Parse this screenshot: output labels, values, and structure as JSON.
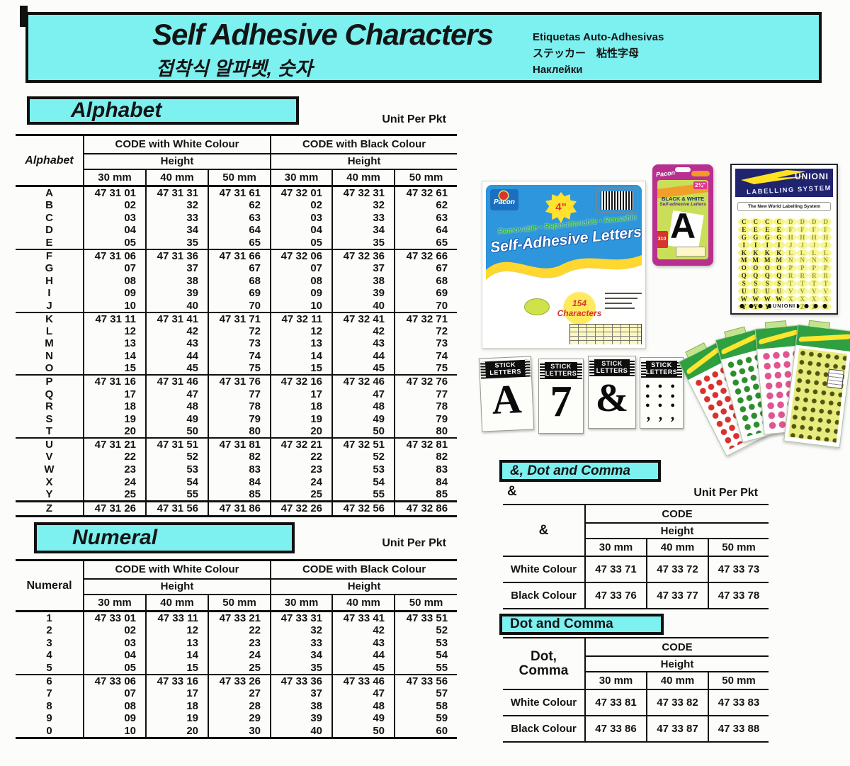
{
  "colors": {
    "cyan": "#7df0f0",
    "package_blue": "#2d96dc",
    "pack_magenta": "#b92f90",
    "union_navy": "#20246e",
    "fan_green": "#2ea042"
  },
  "header": {
    "title": "Self Adhesive Characters",
    "subtitle_korean": "접착식 알파벳, 숫자",
    "translations": [
      "Etiquetas Auto-Adhesivas",
      "ステッカー　粘性字母",
      "Наклейки"
    ]
  },
  "labels": {
    "unit_per_pkt": "Unit Per Pkt",
    "code": "CODE",
    "height": "Height",
    "code_white": "CODE with White Colour",
    "code_black": "CODE with Black Colour",
    "sizes": [
      "30 mm",
      "40 mm",
      "50 mm"
    ],
    "white_colour": "White Colour",
    "black_colour": "Black Colour"
  },
  "alphabet": {
    "heading": "Alphabet",
    "corner": "Alphabet",
    "groups": [
      [
        [
          "A",
          "47 31 01",
          "47 31 31",
          "47 31 61",
          "47 32 01",
          "47 32 31",
          "47 32 61"
        ],
        [
          "B",
          "02",
          "32",
          "62",
          "02",
          "32",
          "62"
        ],
        [
          "C",
          "03",
          "33",
          "63",
          "03",
          "33",
          "63"
        ],
        [
          "D",
          "04",
          "34",
          "64",
          "04",
          "34",
          "64"
        ],
        [
          "E",
          "05",
          "35",
          "65",
          "05",
          "35",
          "65"
        ]
      ],
      [
        [
          "F",
          "47 31 06",
          "47 31 36",
          "47 31 66",
          "47 32 06",
          "47 32 36",
          "47 32 66"
        ],
        [
          "G",
          "07",
          "37",
          "67",
          "07",
          "37",
          "67"
        ],
        [
          "H",
          "08",
          "38",
          "68",
          "08",
          "38",
          "68"
        ],
        [
          "I",
          "09",
          "39",
          "69",
          "09",
          "39",
          "69"
        ],
        [
          "J",
          "10",
          "40",
          "70",
          "10",
          "40",
          "70"
        ]
      ],
      [
        [
          "K",
          "47 31 11",
          "47 31 41",
          "47 31 71",
          "47 32 11",
          "47 32 41",
          "47 32 71"
        ],
        [
          "L",
          "12",
          "42",
          "72",
          "12",
          "42",
          "72"
        ],
        [
          "M",
          "13",
          "43",
          "73",
          "13",
          "43",
          "73"
        ],
        [
          "N",
          "14",
          "44",
          "74",
          "14",
          "44",
          "74"
        ],
        [
          "O",
          "15",
          "45",
          "75",
          "15",
          "45",
          "75"
        ]
      ],
      [
        [
          "P",
          "47 31 16",
          "47 31 46",
          "47 31 76",
          "47 32 16",
          "47 32 46",
          "47 32 76"
        ],
        [
          "Q",
          "17",
          "47",
          "77",
          "17",
          "47",
          "77"
        ],
        [
          "R",
          "18",
          "48",
          "78",
          "18",
          "48",
          "78"
        ],
        [
          "S",
          "19",
          "49",
          "79",
          "19",
          "49",
          "79"
        ],
        [
          "T",
          "20",
          "50",
          "80",
          "20",
          "50",
          "80"
        ]
      ],
      [
        [
          "U",
          "47 31 21",
          "47 31 51",
          "47 31 81",
          "47 32 21",
          "47 32 51",
          "47 32 81"
        ],
        [
          "V",
          "22",
          "52",
          "82",
          "22",
          "52",
          "82"
        ],
        [
          "W",
          "23",
          "53",
          "83",
          "23",
          "53",
          "83"
        ],
        [
          "X",
          "24",
          "54",
          "84",
          "24",
          "54",
          "84"
        ],
        [
          "Y",
          "25",
          "55",
          "85",
          "25",
          "55",
          "85"
        ]
      ],
      [
        [
          "Z",
          "47 31 26",
          "47 31 56",
          "47 31 86",
          "47 32 26",
          "47 32 56",
          "47 32 86"
        ]
      ]
    ]
  },
  "numeral": {
    "heading": "Numeral",
    "corner": "Numeral",
    "groups": [
      [
        [
          "1",
          "47 33 01",
          "47 33 11",
          "47 33 21",
          "47 33 31",
          "47 33 41",
          "47 33 51"
        ],
        [
          "2",
          "02",
          "12",
          "22",
          "32",
          "42",
          "52"
        ],
        [
          "3",
          "03",
          "13",
          "23",
          "33",
          "43",
          "53"
        ],
        [
          "4",
          "04",
          "14",
          "24",
          "34",
          "44",
          "54"
        ],
        [
          "5",
          "05",
          "15",
          "25",
          "35",
          "45",
          "55"
        ]
      ],
      [
        [
          "6",
          "47 33 06",
          "47 33 16",
          "47 33 26",
          "47 33 36",
          "47 33 46",
          "47 33 56"
        ],
        [
          "7",
          "07",
          "17",
          "27",
          "37",
          "47",
          "57"
        ],
        [
          "8",
          "08",
          "18",
          "28",
          "38",
          "48",
          "58"
        ],
        [
          "9",
          "09",
          "19",
          "29",
          "39",
          "49",
          "59"
        ],
        [
          "0",
          "10",
          "20",
          "30",
          "40",
          "50",
          "60"
        ]
      ]
    ]
  },
  "ampersand": {
    "heading": "&, Dot and Comma",
    "symbol": "&",
    "corner": "&",
    "rows": [
      [
        "White Colour",
        "47 33 71",
        "47 33 72",
        "47 33 73"
      ],
      [
        "Black Colour",
        "47 33 76",
        "47 33 77",
        "47 33 78"
      ]
    ]
  },
  "dot_comma": {
    "heading": "Dot and Comma",
    "corner_lines": [
      "Dot,",
      "Comma"
    ],
    "rows": [
      [
        "White Colour",
        "47 33 81",
        "47 33 82",
        "47 33 83"
      ],
      [
        "Black Colour",
        "47 33 86",
        "47 33 87",
        "47 33 88"
      ]
    ]
  },
  "products": {
    "pacon": {
      "brand": "Pacon",
      "size_badge": "4\"",
      "tagline": "Removable • Repositionable • Reusable",
      "title": "Self-Adhesive Letters",
      "count": "154",
      "count_word": "Characters"
    },
    "black_white": {
      "brand": "Pacon",
      "line1": "BLACK & WHITE",
      "line2": "Self-adhesive Letters",
      "letter": "A",
      "size": "2¾\"",
      "count": "310"
    },
    "union": {
      "brand": "UNIONI",
      "system": "LABELLING SYSTEM",
      "tagline": "The New World Labelling System",
      "footer": "UNIONI",
      "letter_rows": [
        "CCCCDDDD",
        "EEEEFFFF",
        "GGGGHHHH",
        "IIIIJJJJ",
        "KKKKLLLL",
        "MMMMNNNN",
        "OOOOPPPP",
        "QQQQRRRR",
        "SSSSTTTT",
        "UUUUVVVV",
        "WWWWXXXX",
        "YYYYZZZZ"
      ]
    },
    "stick": {
      "line1": "STICK",
      "line2": "LETTERS",
      "glyphs": [
        "A",
        "7",
        "&"
      ],
      "dot_rows": [
        "● ● ●",
        "● ● ●",
        "● ● ●"
      ],
      "comma_row": ", , ,"
    }
  }
}
